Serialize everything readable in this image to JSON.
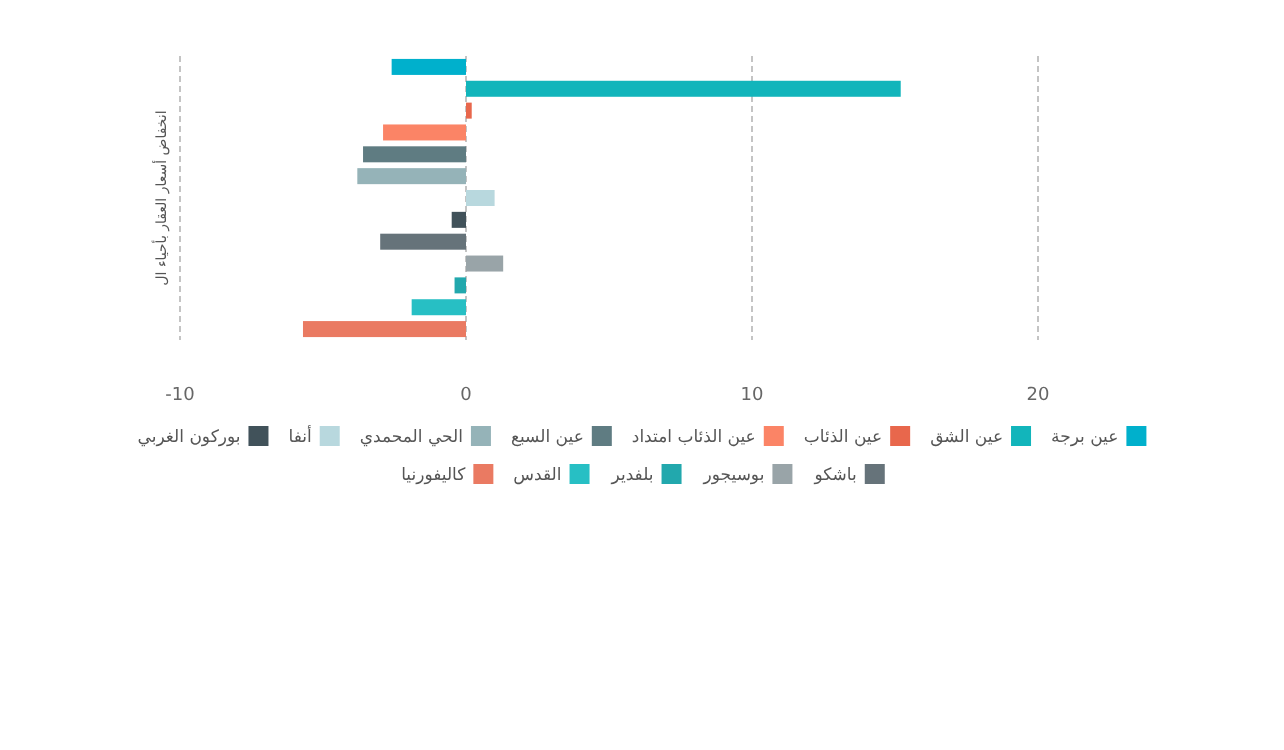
{
  "chart_data": {
    "type": "bar",
    "orientation": "horizontal",
    "ylabel": "انخفاض أسعار العقار بأحياء ال",
    "categories": [
      null,
      null,
      null,
      null,
      null,
      null,
      null,
      null,
      null,
      null,
      null,
      null,
      null
    ],
    "xlim": [
      -10,
      20
    ],
    "xticks": [
      -10,
      0,
      10,
      20
    ],
    "grid": "x",
    "legend": "bottom",
    "series": [
      {
        "name": "عين برجة",
        "color": "#00b0cc",
        "values": [
          -2.6,
          null,
          null,
          null,
          null,
          null,
          null,
          null,
          null,
          null,
          null,
          null,
          null
        ]
      },
      {
        "name": "عين الشق",
        "color": "#12b5bb",
        "values": [
          null,
          15.2,
          null,
          null,
          null,
          null,
          null,
          null,
          null,
          null,
          null,
          null,
          null
        ]
      },
      {
        "name": "عين الذئاب",
        "color": "#e8674c",
        "values": [
          null,
          null,
          0.2,
          null,
          null,
          null,
          null,
          null,
          null,
          null,
          null,
          null,
          null
        ]
      },
      {
        "name": "عين الذئاب امتداد",
        "color": "#fb8466",
        "values": [
          null,
          null,
          null,
          -2.9,
          null,
          null,
          null,
          null,
          null,
          null,
          null,
          null,
          null
        ]
      },
      {
        "name": "عين السبع",
        "color": "#5f7c82",
        "values": [
          null,
          null,
          null,
          null,
          -3.6,
          null,
          null,
          null,
          null,
          null,
          null,
          null,
          null
        ]
      },
      {
        "name": "الحي المحمدي",
        "color": "#95b3b8",
        "values": [
          null,
          null,
          null,
          null,
          null,
          -3.8,
          null,
          null,
          null,
          null,
          null,
          null,
          null
        ]
      },
      {
        "name": "أنفا",
        "color": "#b8d8de",
        "values": [
          null,
          null,
          null,
          null,
          null,
          null,
          1.0,
          null,
          null,
          null,
          null,
          null,
          null
        ]
      },
      {
        "name": "بوركون الغربي",
        "color": "#41525a",
        "values": [
          null,
          null,
          null,
          null,
          null,
          null,
          null,
          -0.5,
          null,
          null,
          null,
          null,
          null
        ]
      },
      {
        "name": "باشكو",
        "color": "#66737a",
        "values": [
          null,
          null,
          null,
          null,
          null,
          null,
          null,
          null,
          -3.0,
          null,
          null,
          null,
          null
        ]
      },
      {
        "name": "بوسيجور",
        "color": "#99a4a8",
        "values": [
          null,
          null,
          null,
          null,
          null,
          null,
          null,
          null,
          null,
          1.3,
          null,
          null,
          null
        ]
      },
      {
        "name": "بلفدير",
        "color": "#22a8ad",
        "values": [
          null,
          null,
          null,
          null,
          null,
          null,
          null,
          null,
          null,
          null,
          -0.4,
          null,
          null
        ]
      },
      {
        "name": "القدس",
        "color": "#27bfc4",
        "values": [
          null,
          null,
          null,
          null,
          null,
          null,
          null,
          null,
          null,
          null,
          null,
          -1.9,
          null
        ]
      },
      {
        "name": "كاليفورنيا",
        "color": "#ea7a62",
        "values": [
          null,
          null,
          null,
          null,
          null,
          null,
          null,
          null,
          null,
          null,
          null,
          null,
          -5.7
        ]
      }
    ]
  }
}
